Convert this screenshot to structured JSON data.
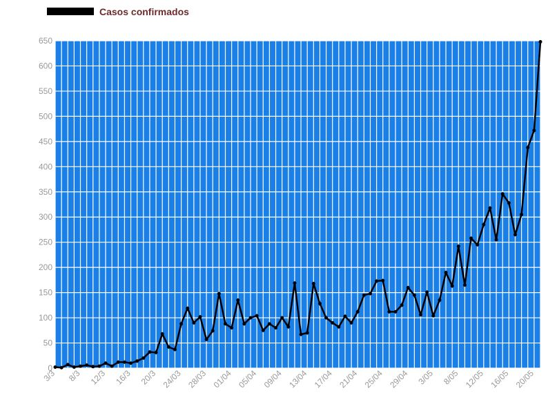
{
  "chart_data": {
    "type": "line",
    "legend": "top-left",
    "grid": true,
    "series": [
      {
        "name": "Casos confirmados",
        "color": "#000000",
        "values": [
          2,
          1,
          7,
          2,
          4,
          6,
          3,
          4,
          10,
          4,
          12,
          12,
          10,
          14,
          20,
          32,
          31,
          68,
          42,
          37,
          88,
          119,
          90,
          102,
          57,
          74,
          148,
          88,
          80,
          135,
          88,
          100,
          104,
          75,
          88,
          80,
          100,
          82,
          169,
          67,
          70,
          168,
          128,
          100,
          90,
          82,
          103,
          90,
          112,
          145,
          148,
          173,
          174,
          112,
          112,
          125,
          160,
          145,
          106,
          151,
          104,
          135,
          190,
          163,
          242,
          165,
          258,
          245,
          285,
          318,
          255,
          346,
          328,
          265,
          305,
          438,
          472,
          648
        ]
      }
    ],
    "categories": [
      "3/3",
      null,
      null,
      null,
      "8/3",
      null,
      null,
      null,
      "12/3",
      null,
      null,
      null,
      "16/3",
      null,
      null,
      null,
      "20/3",
      null,
      null,
      null,
      "24/03",
      null,
      null,
      null,
      "28/03",
      null,
      null,
      null,
      "01/04",
      null,
      null,
      null,
      "05/04",
      null,
      null,
      null,
      "09/04",
      null,
      null,
      null,
      "13/04",
      null,
      null,
      null,
      "17/04",
      null,
      null,
      null,
      "21/04",
      null,
      null,
      null,
      "25/04",
      null,
      null,
      null,
      "29/04",
      null,
      null,
      null,
      "3/05",
      null,
      null,
      null,
      "8/05",
      null,
      null,
      null,
      "12/05",
      null,
      null,
      null,
      "16/05",
      null,
      null,
      null,
      "20/05",
      null
    ],
    "ylim": [
      0,
      650
    ],
    "yticks": [
      0,
      50,
      100,
      150,
      200,
      250,
      300,
      350,
      400,
      450,
      500,
      550,
      600,
      650
    ],
    "plot_background": "#1a7fe6",
    "legend_text_color": "#6b2b2b"
  }
}
